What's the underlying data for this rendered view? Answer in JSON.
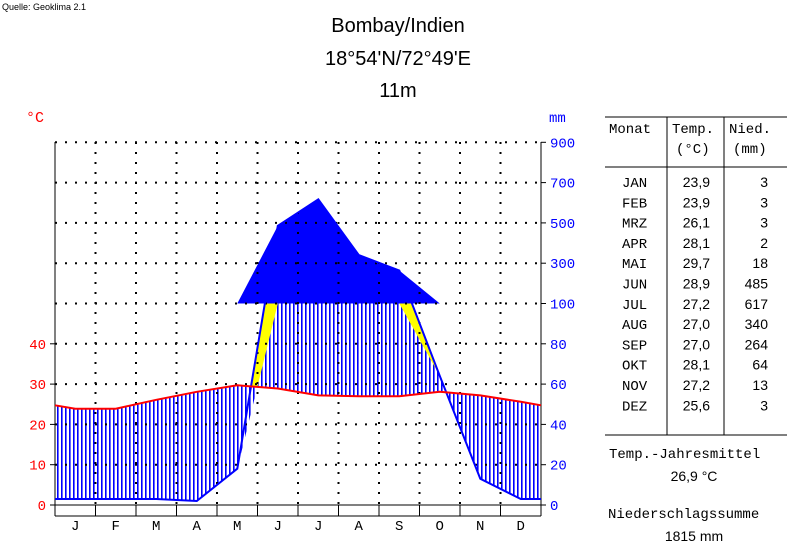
{
  "source": "Quelle: Geoklima 2.1",
  "header": {
    "station": "Bombay/Indien",
    "coords": "18°54'N/72°49'E",
    "elevation": "11m"
  },
  "axis_units": {
    "temp": "°C",
    "precip": "mm"
  },
  "table": {
    "headers": {
      "month": "Monat",
      "temp1": "Temp.",
      "temp2": "(°C)",
      "prec1": "Nied.",
      "prec2": "(mm)"
    },
    "rows": [
      {
        "m": "JAN",
        "t": "23,9",
        "p": "3"
      },
      {
        "m": "FEB",
        "t": "23,9",
        "p": "3"
      },
      {
        "m": "MRZ",
        "t": "26,1",
        "p": "3"
      },
      {
        "m": "APR",
        "t": "28,1",
        "p": "2"
      },
      {
        "m": "MAI",
        "t": "29,7",
        "p": "18"
      },
      {
        "m": "JUN",
        "t": "28,9",
        "p": "485"
      },
      {
        "m": "JUL",
        "t": "27,2",
        "p": "617"
      },
      {
        "m": "AUG",
        "t": "27,0",
        "p": "340"
      },
      {
        "m": "SEP",
        "t": "27,0",
        "p": "264"
      },
      {
        "m": "OKT",
        "t": "28,1",
        "p": "64"
      },
      {
        "m": "NOV",
        "t": "27,2",
        "p": "13"
      },
      {
        "m": "DEZ",
        "t": "25,6",
        "p": "3"
      }
    ],
    "annual_temp_label": "Temp.-Jahresmittel",
    "annual_temp_value": "26,9 °C",
    "annual_precip_label": "Niederschlagssumme",
    "annual_precip_value": "1815 mm"
  },
  "chart_data": {
    "type": "line",
    "categories": [
      "J",
      "F",
      "M",
      "A",
      "M",
      "J",
      "J",
      "A",
      "S",
      "O",
      "N",
      "D"
    ],
    "series": [
      {
        "values": [
          23.9,
          23.9,
          26.1,
          28.1,
          29.7,
          28.9,
          27.2,
          27.0,
          27.0,
          28.1,
          27.2,
          25.6
        ]
      },
      {
        "values": [
          3,
          3,
          3,
          2,
          18,
          485,
          617,
          340,
          264,
          64,
          13,
          3
        ]
      }
    ],
    "temp_ticks": [
      "0",
      "10",
      "20",
      "30",
      "40"
    ],
    "precip_ticks": [
      "0",
      "20",
      "40",
      "60",
      "80",
      "100",
      "300",
      "500",
      "700",
      "900"
    ],
    "ylim_temp": [
      0,
      90
    ],
    "ylim_precip": [
      0,
      900
    ],
    "grid": true,
    "colors": {
      "temp": "#ff0000",
      "precip": "#0000ff",
      "dry": "#ffff00",
      "humid": "#0000ff"
    }
  }
}
